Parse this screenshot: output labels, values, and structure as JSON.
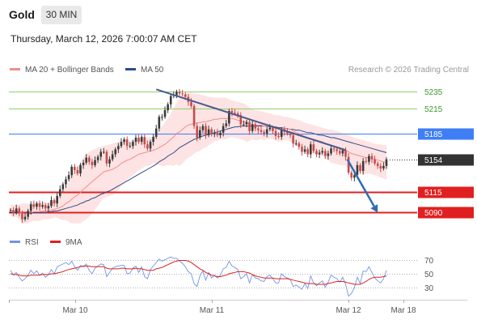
{
  "header": {
    "title": "Gold",
    "timeframe": "30 MIN",
    "timestamp": "Thursday, March 12, 2026 7:00:07 AM CET"
  },
  "legend": {
    "ma20_label": "MA 20 + Bollinger Bands",
    "ma50_label": "MA 50",
    "credit": "Research © 2026 Trading Central",
    "rsi_label": "RSI",
    "ma9_label": "9MA"
  },
  "colors": {
    "bullish": "#3a3a3a",
    "bearish": "#c84b4b",
    "bollinger_fill": "#fde3e3",
    "ma20": "#f28c8c",
    "ma50": "#2e4a8c",
    "resistance": "#8fd16a",
    "pivot": "#3f7ef5",
    "support": "#e02020",
    "trendline": "#4a5a8c",
    "forecast_arrow": "#2f6db5",
    "rsi": "#6f95e6",
    "rsi_ma": "#e02020"
  },
  "chart_data": [
    {
      "type": "candlestick",
      "x_ticks": [
        "Mar 10",
        "Mar 11",
        "Mar 12",
        "Mar 18"
      ],
      "ylim": [
        5071,
        5250
      ],
      "levels": [
        {
          "label": "5235",
          "value": 5235,
          "kind": "resistance"
        },
        {
          "label": "5215",
          "value": 5215,
          "kind": "resistance"
        },
        {
          "label": "5185",
          "value": 5185,
          "kind": "pivot"
        },
        {
          "label": "5154",
          "value": 5154,
          "kind": "last"
        },
        {
          "label": "5115",
          "value": 5115,
          "kind": "support"
        },
        {
          "label": "5090",
          "value": 5090,
          "kind": "support"
        }
      ],
      "close": [
        5093,
        5090,
        5095,
        5089,
        5082,
        5085,
        5092,
        5100,
        5097,
        5101,
        5097,
        5099,
        5095,
        5098,
        5105,
        5101,
        5110,
        5118,
        5124,
        5130,
        5135,
        5145,
        5141,
        5137,
        5147,
        5150,
        5156,
        5151,
        5147,
        5153,
        5157,
        5163,
        5163,
        5149,
        5154,
        5160,
        5166,
        5170,
        5175,
        5178,
        5170,
        5170,
        5175,
        5180,
        5175,
        5181,
        5172,
        5167,
        5175,
        5181,
        5191,
        5205,
        5205,
        5213,
        5220,
        5230,
        5231,
        5235,
        5233,
        5232,
        5229,
        5223,
        5218,
        5194,
        5180,
        5189,
        5194,
        5183,
        5190,
        5185,
        5186,
        5183,
        5186,
        5194,
        5197,
        5212,
        5210,
        5209,
        5207,
        5196,
        5196,
        5199,
        5188,
        5196,
        5191,
        5189,
        5187,
        5185,
        5190,
        5192,
        5188,
        5182,
        5181,
        5190,
        5187,
        5185,
        5183,
        5173,
        5173,
        5169,
        5163,
        5166,
        5160,
        5172,
        5164,
        5160,
        5162,
        5164,
        5158,
        5161,
        5167,
        5166,
        5164,
        5161,
        5165,
        5157,
        5138,
        5132,
        5135,
        5147,
        5140,
        5152,
        5151,
        5158,
        5154,
        5149,
        5146,
        5143,
        5146,
        5154
      ],
      "ma20": [
        5093,
        5092,
        5092,
        5091,
        5089,
        5089,
        5089,
        5090,
        5091,
        5091,
        5091,
        5092,
        5092,
        5092,
        5093,
        5094,
        5095,
        5096,
        5098,
        5101,
        5103,
        5106,
        5109,
        5111,
        5114,
        5118,
        5121,
        5124,
        5127,
        5130,
        5133,
        5136,
        5139,
        5140,
        5141,
        5142,
        5144,
        5146,
        5149,
        5151,
        5153,
        5154,
        5156,
        5158,
        5160,
        5161,
        5162,
        5163,
        5164,
        5165,
        5166,
        5168,
        5170,
        5172,
        5175,
        5178,
        5181,
        5185,
        5187,
        5190,
        5193,
        5195,
        5196,
        5197,
        5198,
        5198,
        5199,
        5199,
        5200,
        5201,
        5202,
        5202,
        5203,
        5203,
        5203,
        5203,
        5203,
        5202,
        5201,
        5200,
        5199,
        5197,
        5196,
        5196,
        5195,
        5195,
        5195,
        5194,
        5194,
        5194,
        5193,
        5192,
        5191,
        5191,
        5191,
        5191,
        5190,
        5188,
        5186,
        5185,
        5183,
        5181,
        5180,
        5179,
        5178,
        5177,
        5176,
        5175,
        5173,
        5172,
        5170,
        5169,
        5168,
        5167,
        5166,
        5165,
        5163,
        5161,
        5160,
        5159,
        5158,
        5157,
        5156,
        5156,
        5155,
        5154,
        5153,
        5152,
        5151,
        5150
      ],
      "bb_upper": [
        5100,
        5099,
        5099,
        5100,
        5101,
        5101,
        5101,
        5101,
        5102,
        5102,
        5102,
        5102,
        5102,
        5102,
        5103,
        5104,
        5106,
        5110,
        5115,
        5121,
        5127,
        5135,
        5141,
        5145,
        5151,
        5156,
        5160,
        5163,
        5165,
        5166,
        5168,
        5169,
        5170,
        5171,
        5172,
        5173,
        5174,
        5175,
        5176,
        5177,
        5176,
        5176,
        5177,
        5178,
        5179,
        5179,
        5179,
        5180,
        5181,
        5181,
        5184,
        5189,
        5194,
        5198,
        5203,
        5209,
        5216,
        5222,
        5228,
        5231,
        5233,
        5234,
        5234,
        5233,
        5233,
        5232,
        5231,
        5230,
        5229,
        5229,
        5228,
        5228,
        5228,
        5228,
        5228,
        5226,
        5225,
        5224,
        5223,
        5222,
        5221,
        5219,
        5216,
        5214,
        5213,
        5213,
        5212,
        5211,
        5210,
        5209,
        5208,
        5207,
        5207,
        5206,
        5205,
        5205,
        5204,
        5203,
        5202,
        5201,
        5199,
        5198,
        5197,
        5196,
        5195,
        5194,
        5193,
        5192,
        5191,
        5190,
        5190,
        5189,
        5188,
        5187,
        5185,
        5184,
        5183,
        5181,
        5180,
        5179,
        5178,
        5177,
        5176,
        5175,
        5174,
        5173,
        5172,
        5172,
        5171,
        5171
      ],
      "bb_lower": [
        5086,
        5085,
        5085,
        5082,
        5077,
        5077,
        5077,
        5079,
        5080,
        5080,
        5080,
        5082,
        5082,
        5082,
        5083,
        5084,
        5084,
        5082,
        5081,
        5081,
        5079,
        5077,
        5077,
        5077,
        5077,
        5080,
        5082,
        5085,
        5089,
        5094,
        5098,
        5103,
        5108,
        5109,
        5110,
        5111,
        5114,
        5117,
        5122,
        5125,
        5130,
        5132,
        5135,
        5138,
        5141,
        5143,
        5145,
        5146,
        5147,
        5149,
        5148,
        5147,
        5146,
        5146,
        5147,
        5147,
        5146,
        5148,
        5146,
        5149,
        5153,
        5156,
        5158,
        5161,
        5163,
        5164,
        5167,
        5168,
        5171,
        5173,
        5176,
        5176,
        5178,
        5178,
        5178,
        5180,
        5181,
        5180,
        5179,
        5178,
        5177,
        5175,
        5176,
        5178,
        5177,
        5177,
        5178,
        5177,
        5178,
        5179,
        5178,
        5177,
        5175,
        5176,
        5177,
        5177,
        5176,
        5173,
        5170,
        5169,
        5167,
        5164,
        5163,
        5162,
        5161,
        5160,
        5159,
        5158,
        5155,
        5154,
        5150,
        5149,
        5148,
        5147,
        5147,
        5146,
        5143,
        5141,
        5140,
        5139,
        5138,
        5137,
        5136,
        5137,
        5136,
        5135,
        5134,
        5132,
        5131,
        5129
      ],
      "ma50": [
        5090,
        5090,
        5090,
        5090,
        5089,
        5089,
        5089,
        5089,
        5090,
        5090,
        5090,
        5090,
        5090,
        5091,
        5091,
        5092,
        5092,
        5093,
        5094,
        5095,
        5096,
        5097,
        5098,
        5099,
        5101,
        5102,
        5104,
        5105,
        5107,
        5108,
        5110,
        5112,
        5113,
        5115,
        5116,
        5118,
        5120,
        5122,
        5124,
        5126,
        5128,
        5130,
        5132,
        5134,
        5136,
        5138,
        5140,
        5142,
        5144,
        5146,
        5148,
        5151,
        5153,
        5155,
        5158,
        5160,
        5162,
        5165,
        5168,
        5170,
        5172,
        5174,
        5176,
        5178,
        5179,
        5181,
        5182,
        5183,
        5184,
        5185,
        5186,
        5187,
        5188,
        5189,
        5190,
        5191,
        5192,
        5193,
        5193,
        5194,
        5194,
        5194,
        5194,
        5194,
        5194,
        5194,
        5194,
        5194,
        5194,
        5193,
        5193,
        5193,
        5192,
        5192,
        5191,
        5191,
        5190,
        5190,
        5189,
        5189,
        5188,
        5187,
        5186,
        5186,
        5185,
        5184,
        5183,
        5183,
        5182,
        5181,
        5180,
        5180,
        5179,
        5178,
        5177,
        5176,
        5175,
        5174,
        5173,
        5172,
        5171,
        5170,
        5169,
        5168,
        5167,
        5166,
        5165,
        5164,
        5163,
        5162
      ],
      "trendline": [
        {
          "i": 50,
          "v": 5238
        },
        {
          "i": 115,
          "v": 5165
        }
      ],
      "forecast": [
        {
          "i": 115,
          "v": 5154
        },
        {
          "i": 126,
          "v": 5090
        }
      ]
    },
    {
      "type": "line",
      "title": "RSI",
      "y_ticks": [
        70,
        50,
        30
      ],
      "ylim": [
        20,
        80
      ],
      "rsi": [
        55,
        48,
        52,
        45,
        40,
        43,
        48,
        55,
        50,
        54,
        48,
        51,
        45,
        49,
        56,
        50,
        60,
        62,
        64,
        66,
        63,
        68,
        60,
        55,
        62,
        60,
        64,
        55,
        50,
        58,
        61,
        64,
        63,
        46,
        52,
        58,
        60,
        61,
        62,
        62,
        50,
        51,
        58,
        61,
        52,
        60,
        46,
        43,
        56,
        61,
        66,
        71,
        68,
        70,
        72,
        74,
        72,
        72,
        68,
        65,
        60,
        53,
        50,
        36,
        32,
        47,
        54,
        41,
        52,
        44,
        48,
        44,
        48,
        57,
        59,
        68,
        61,
        59,
        56,
        43,
        46,
        50,
        37,
        49,
        44,
        43,
        40,
        39,
        46,
        48,
        43,
        37,
        37,
        50,
        46,
        44,
        42,
        32,
        34,
        31,
        28,
        36,
        29,
        47,
        37,
        33,
        37,
        40,
        31,
        38,
        48,
        45,
        43,
        38,
        45,
        35,
        18,
        22,
        30,
        45,
        36,
        54,
        53,
        60,
        52,
        44,
        40,
        37,
        43,
        55
      ],
      "ma9": [
        50,
        49,
        49,
        48,
        47,
        47,
        47,
        48,
        48,
        48,
        48,
        49,
        49,
        49,
        50,
        50,
        51,
        52,
        53,
        55,
        56,
        57,
        58,
        59,
        60,
        61,
        61,
        61,
        60,
        60,
        60,
        60,
        60,
        58,
        57,
        57,
        57,
        57,
        58,
        58,
        57,
        57,
        57,
        58,
        57,
        57,
        56,
        55,
        55,
        55,
        57,
        58,
        59,
        61,
        63,
        65,
        67,
        68,
        69,
        69,
        69,
        68,
        66,
        63,
        60,
        57,
        55,
        52,
        50,
        48,
        47,
        46,
        46,
        47,
        48,
        50,
        51,
        52,
        53,
        53,
        53,
        52,
        51,
        49,
        47,
        46,
        45,
        44,
        44,
        44,
        44,
        43,
        43,
        43,
        43,
        43,
        42,
        41,
        40,
        39,
        38,
        37,
        36,
        36,
        36,
        35,
        35,
        35,
        35,
        36,
        37,
        38,
        39,
        39,
        39,
        38,
        37,
        36,
        35,
        35,
        35,
        37,
        39,
        42,
        44,
        45,
        45,
        45,
        46,
        47
      ]
    }
  ]
}
